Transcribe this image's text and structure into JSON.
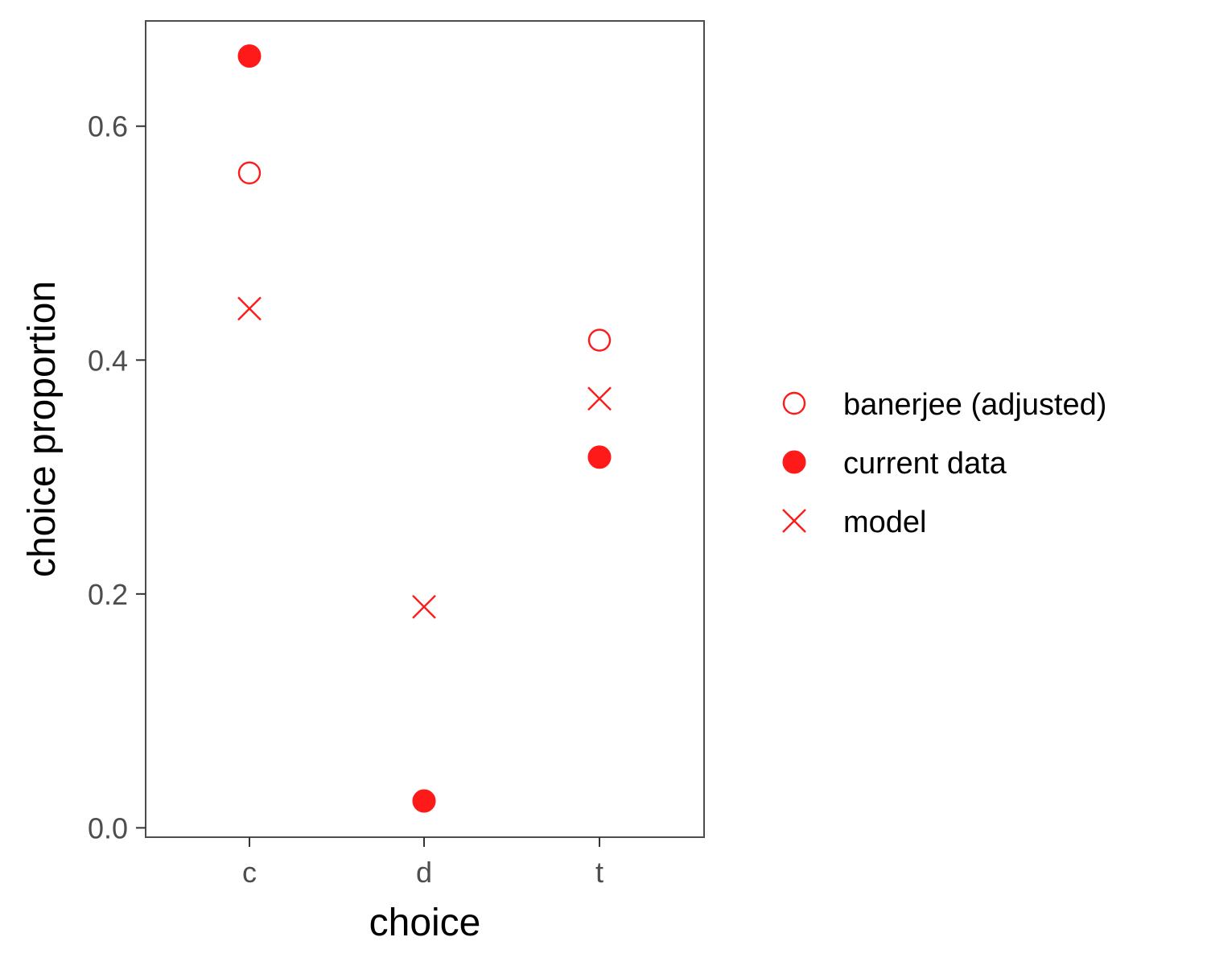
{
  "chart_data": {
    "type": "scatter",
    "title": "",
    "xlabel": "choice",
    "ylabel": "choice proportion",
    "categories": [
      "c",
      "d",
      "t"
    ],
    "ylim": [
      -0.008,
      0.69
    ],
    "yticks": [
      0.0,
      0.2,
      0.4,
      0.6
    ],
    "ytick_labels": [
      "0.0",
      "0.2",
      "0.4",
      "0.6"
    ],
    "grid": false,
    "legend_position": "right",
    "point_color": "#ff1a1a",
    "series": [
      {
        "name": "banerjee (adjusted)",
        "shape": "open-circle",
        "points": [
          {
            "x": "c",
            "y": 0.56
          },
          {
            "x": "t",
            "y": 0.417
          }
        ]
      },
      {
        "name": "current data",
        "shape": "filled-circle",
        "points": [
          {
            "x": "c",
            "y": 0.66
          },
          {
            "x": "d",
            "y": 0.023
          },
          {
            "x": "t",
            "y": 0.317
          }
        ]
      },
      {
        "name": "model",
        "shape": "cross",
        "points": [
          {
            "x": "c",
            "y": 0.444
          },
          {
            "x": "d",
            "y": 0.189
          },
          {
            "x": "t",
            "y": 0.367
          }
        ]
      }
    ]
  }
}
